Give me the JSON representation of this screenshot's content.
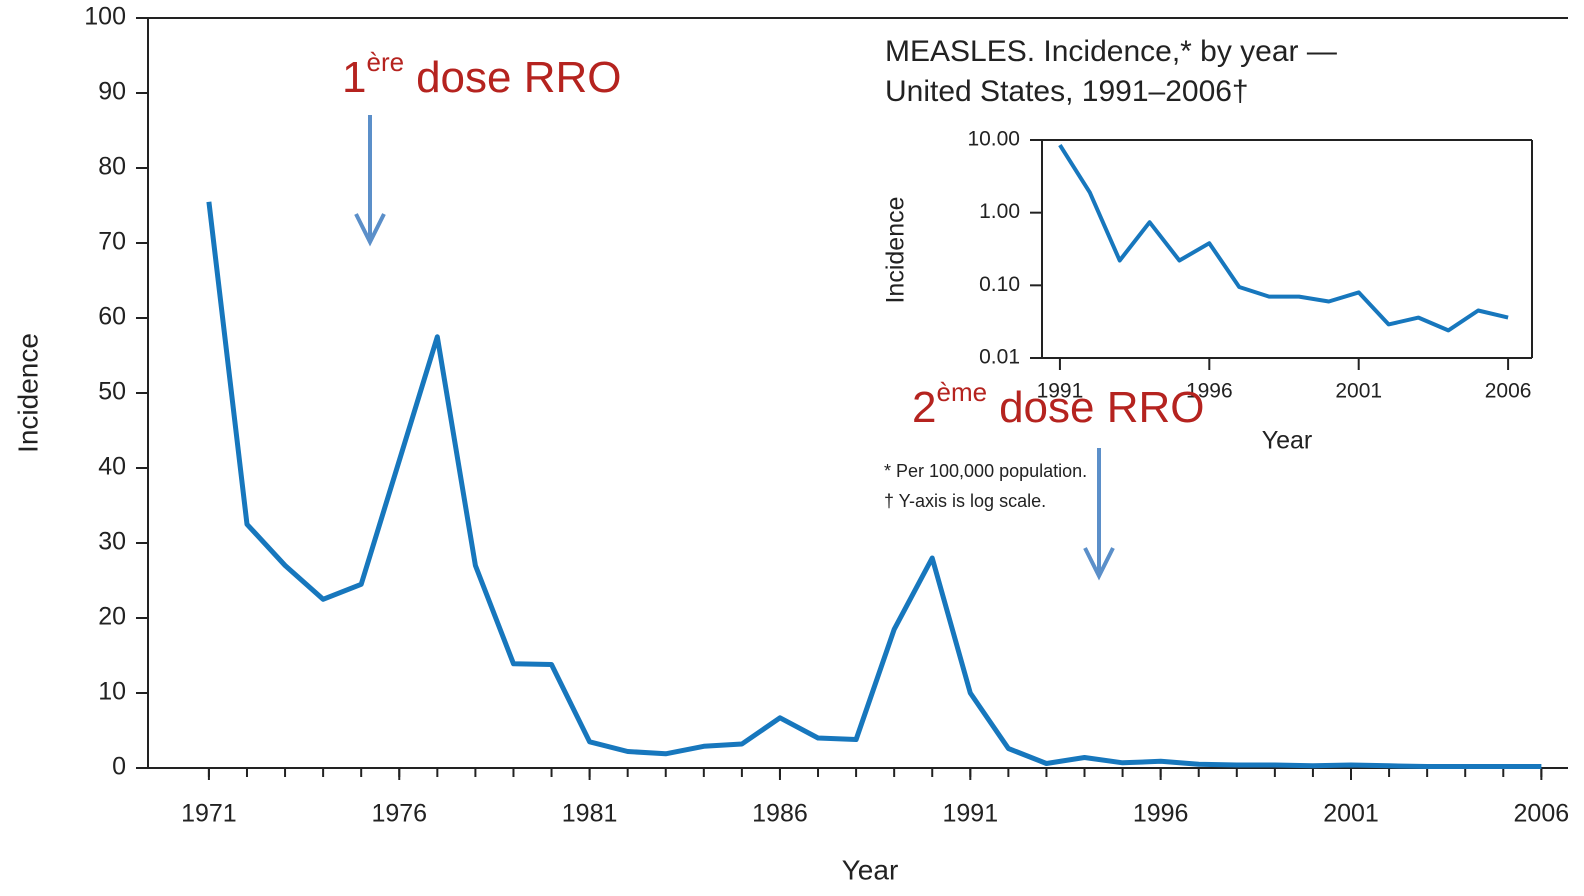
{
  "chart_data": [
    {
      "type": "line",
      "x_label": "Year",
      "y_label": "Incidence",
      "color": "#1777bd",
      "x": [
        1971,
        1972,
        1973,
        1974,
        1975,
        1976,
        1977,
        1978,
        1979,
        1980,
        1981,
        1982,
        1983,
        1984,
        1985,
        1986,
        1987,
        1988,
        1989,
        1990,
        1991,
        1992,
        1993,
        1994,
        1995,
        1996,
        1997,
        1998,
        1999,
        2000,
        2001,
        2002,
        2003,
        2004,
        2005,
        2006
      ],
      "values": [
        75.5,
        32.5,
        27,
        22.5,
        24.5,
        41,
        57.5,
        27,
        13.9,
        13.8,
        3.5,
        2.2,
        1.9,
        2.9,
        3.2,
        6.7,
        4.0,
        3.8,
        18.5,
        28,
        10,
        2.6,
        0.6,
        1.4,
        0.7,
        0.9,
        0.5,
        0.4,
        0.4,
        0.3,
        0.4,
        0.3,
        0.2,
        0.2,
        0.2,
        0.2
      ],
      "xlim": [
        1969.4,
        2006.7
      ],
      "xticks": [
        1971,
        1976,
        1981,
        1986,
        1991,
        1996,
        2001,
        2006
      ],
      "ylim": [
        0,
        100
      ],
      "yticks": [
        0,
        10,
        20,
        30,
        40,
        50,
        60,
        70,
        80,
        90,
        100
      ],
      "log_scale": false
    },
    {
      "type": "line",
      "title": [
        "MEASLES. Incidence,* by year —",
        "United States, 1991–2006†"
      ],
      "x_label": "Year",
      "y_label": "Incidence",
      "color": "#1777bd",
      "x": [
        1991,
        1992,
        1993,
        1994,
        1995,
        1996,
        1997,
        1998,
        1999,
        2000,
        2001,
        2002,
        2003,
        2004,
        2005,
        2006
      ],
      "values": [
        8.5,
        1.9,
        0.22,
        0.74,
        0.22,
        0.38,
        0.095,
        0.07,
        0.07,
        0.06,
        0.08,
        0.029,
        0.036,
        0.024,
        0.045,
        0.036
      ],
      "xlim": [
        1990.4,
        2006.8
      ],
      "xticks": [
        1991,
        1996,
        2001,
        2006
      ],
      "ylim": [
        0.01,
        10
      ],
      "yticks": [
        {
          "value": 10,
          "label": "10.00"
        },
        {
          "value": 1,
          "label": "1.00"
        },
        {
          "value": 0.1,
          "label": "0.10"
        },
        {
          "value": 0.01,
          "label": "0.01"
        }
      ],
      "log_scale": true,
      "footnotes": [
        "* Per 100,000 population.",
        "† Y-axis is log scale."
      ]
    }
  ],
  "annotations": [
    {
      "base": "1",
      "sup": "ère",
      "rest": "dose RRO"
    },
    {
      "base": "2",
      "sup": "ème",
      "rest": "dose RRO"
    }
  ]
}
